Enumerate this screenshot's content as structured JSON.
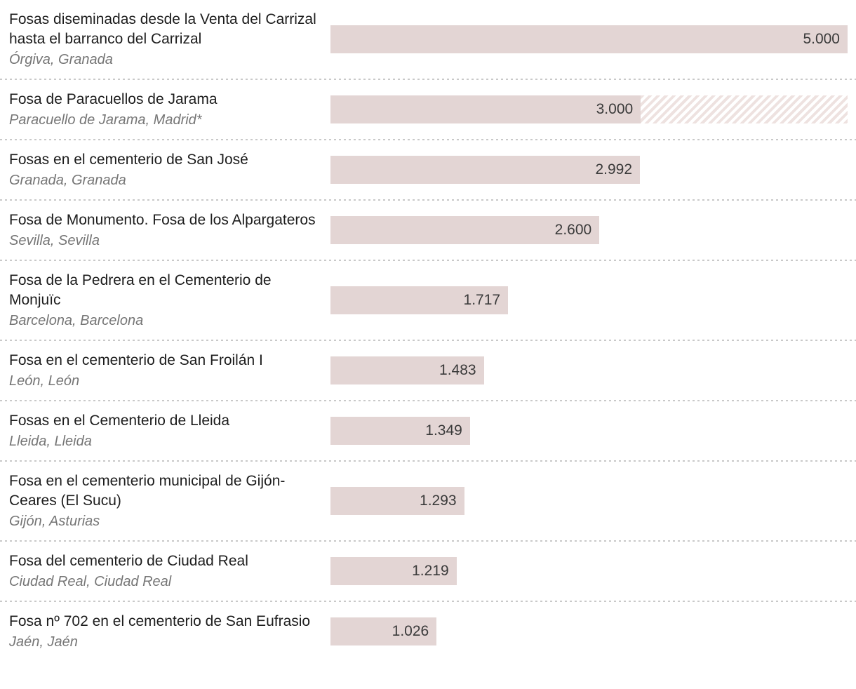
{
  "chart_data": {
    "type": "bar",
    "orientation": "horizontal",
    "value_axis_max": 5000,
    "bar_color": "#e3d5d4",
    "hatch_color": "#eee2e0",
    "legend_note": "hatched segment = estimated upper range for Paracuellos de Jarama",
    "categories": [
      "Fosas diseminadas desde la Venta del Carrizal hasta el barranco del Carrizal",
      "Fosa de Paracuellos de Jarama",
      "Fosas en el cementerio de San José",
      "Fosa de Monumento. Fosa de los Alpargateros",
      "Fosa de la Pedrera en el Cementerio de Monjuïc",
      "Fosa en el cementerio de San Froilán I",
      "Fosas en el Cementerio de Lleida",
      "Fosa en el cementerio municipal de Gijón-Ceares (El Sucu)",
      "Fosa del cementerio de Ciudad Real",
      "Fosa nº 702 en el cementerio de San Eufrasio"
    ],
    "values": [
      5000,
      3000,
      2992,
      2600,
      1717,
      1483,
      1349,
      1293,
      1219,
      1026
    ],
    "rows": [
      {
        "title": "Fosas diseminadas desde la Venta del Carrizal hasta el barranco del Carrizal",
        "location": "Órgiva, Granada",
        "value": 5000,
        "value_label": "5.000",
        "hatched": false
      },
      {
        "title": "Fosa de Paracuellos de Jarama",
        "location": "Paracuello de Jarama, Madrid*",
        "value": 3000,
        "value_label": "3.000",
        "hatched": true
      },
      {
        "title": "Fosas en el cementerio de San José",
        "location": "Granada, Granada",
        "value": 2992,
        "value_label": "2.992",
        "hatched": false
      },
      {
        "title": "Fosa de Monumento. Fosa de los Alpargateros",
        "location": "Sevilla, Sevilla",
        "value": 2600,
        "value_label": "2.600",
        "hatched": false
      },
      {
        "title": "Fosa de la Pedrera en el Cementerio de Monjuïc",
        "location": "Barcelona, Barcelona",
        "value": 1717,
        "value_label": "1.717",
        "hatched": false
      },
      {
        "title": "Fosa en el cementerio de San Froilán I",
        "location": "León, León",
        "value": 1483,
        "value_label": "1.483",
        "hatched": false
      },
      {
        "title": "Fosas en el Cementerio de Lleida",
        "location": "Lleida, Lleida",
        "value": 1349,
        "value_label": "1.349",
        "hatched": false
      },
      {
        "title": "Fosa en el cementerio municipal de Gijón-Ceares (El Sucu)",
        "location": "Gijón, Asturias",
        "value": 1293,
        "value_label": "1.293",
        "hatched": false
      },
      {
        "title": "Fosa del cementerio de Ciudad Real",
        "location": "Ciudad Real, Ciudad Real",
        "value": 1219,
        "value_label": "1.219",
        "hatched": false
      },
      {
        "title": "Fosa nº 702 en el cementerio de San Eufrasio",
        "location": "Jaén, Jaén",
        "value": 1026,
        "value_label": "1.026",
        "hatched": false
      }
    ]
  },
  "colors": {
    "title_text": "#1d1d1d",
    "location_text": "#767676",
    "value_text": "#3a3a3a",
    "separator": "#c9c9c9",
    "background": "#ffffff"
  }
}
